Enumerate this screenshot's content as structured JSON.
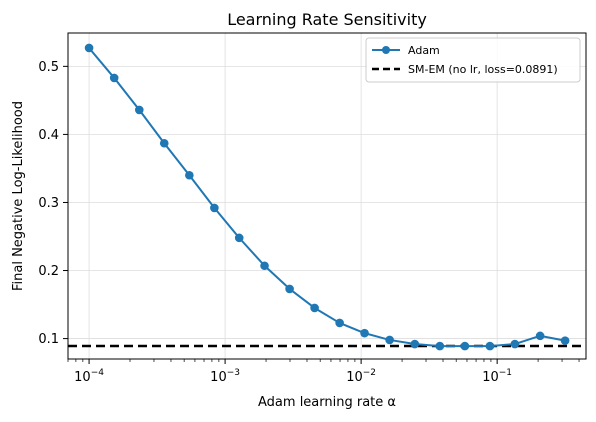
{
  "chart_data": {
    "type": "line",
    "title": "Learning Rate Sensitivity",
    "xlabel": "Adam learning rate α",
    "ylabel": "Final Negative Log-Likelihood",
    "xscale": "log",
    "xlim": [
      7e-05,
      0.45
    ],
    "ylim": [
      0.07,
      0.549
    ],
    "xticks": [
      {
        "value": 0.0001,
        "base": "10",
        "exp": "−4"
      },
      {
        "value": 0.001,
        "base": "10",
        "exp": "−3"
      },
      {
        "value": 0.01,
        "base": "10",
        "exp": "−2"
      },
      {
        "value": 0.1,
        "base": "10",
        "exp": "−1"
      }
    ],
    "yticks": [
      {
        "value": 0.1,
        "label": "0.1"
      },
      {
        "value": 0.2,
        "label": "0.2"
      },
      {
        "value": 0.3,
        "label": "0.3"
      },
      {
        "value": 0.4,
        "label": "0.4"
      },
      {
        "value": 0.5,
        "label": "0.5"
      }
    ],
    "grid": true,
    "legend_position": "top-right",
    "series": [
      {
        "name": "Adam",
        "color": "#1f77b4",
        "marker": "circle",
        "x": [
          0.0001,
          0.000153,
          0.000234,
          0.000357,
          0.000546,
          0.000834,
          0.00127,
          0.00195,
          0.00298,
          0.00455,
          0.00695,
          0.0106,
          0.0162,
          0.0248,
          0.0379,
          0.0579,
          0.0885,
          0.135,
          0.207,
          0.316
        ],
        "y": [
          0.527,
          0.483,
          0.436,
          0.387,
          0.34,
          0.292,
          0.248,
          0.207,
          0.173,
          0.145,
          0.123,
          0.108,
          0.098,
          0.092,
          0.089,
          0.089,
          0.089,
          0.092,
          0.104,
          0.097
        ]
      }
    ],
    "reference_lines": [
      {
        "name": "SM-EM (no lr, loss=0.0891)",
        "y": 0.0891,
        "color": "#000000",
        "style": "dashed"
      }
    ]
  }
}
